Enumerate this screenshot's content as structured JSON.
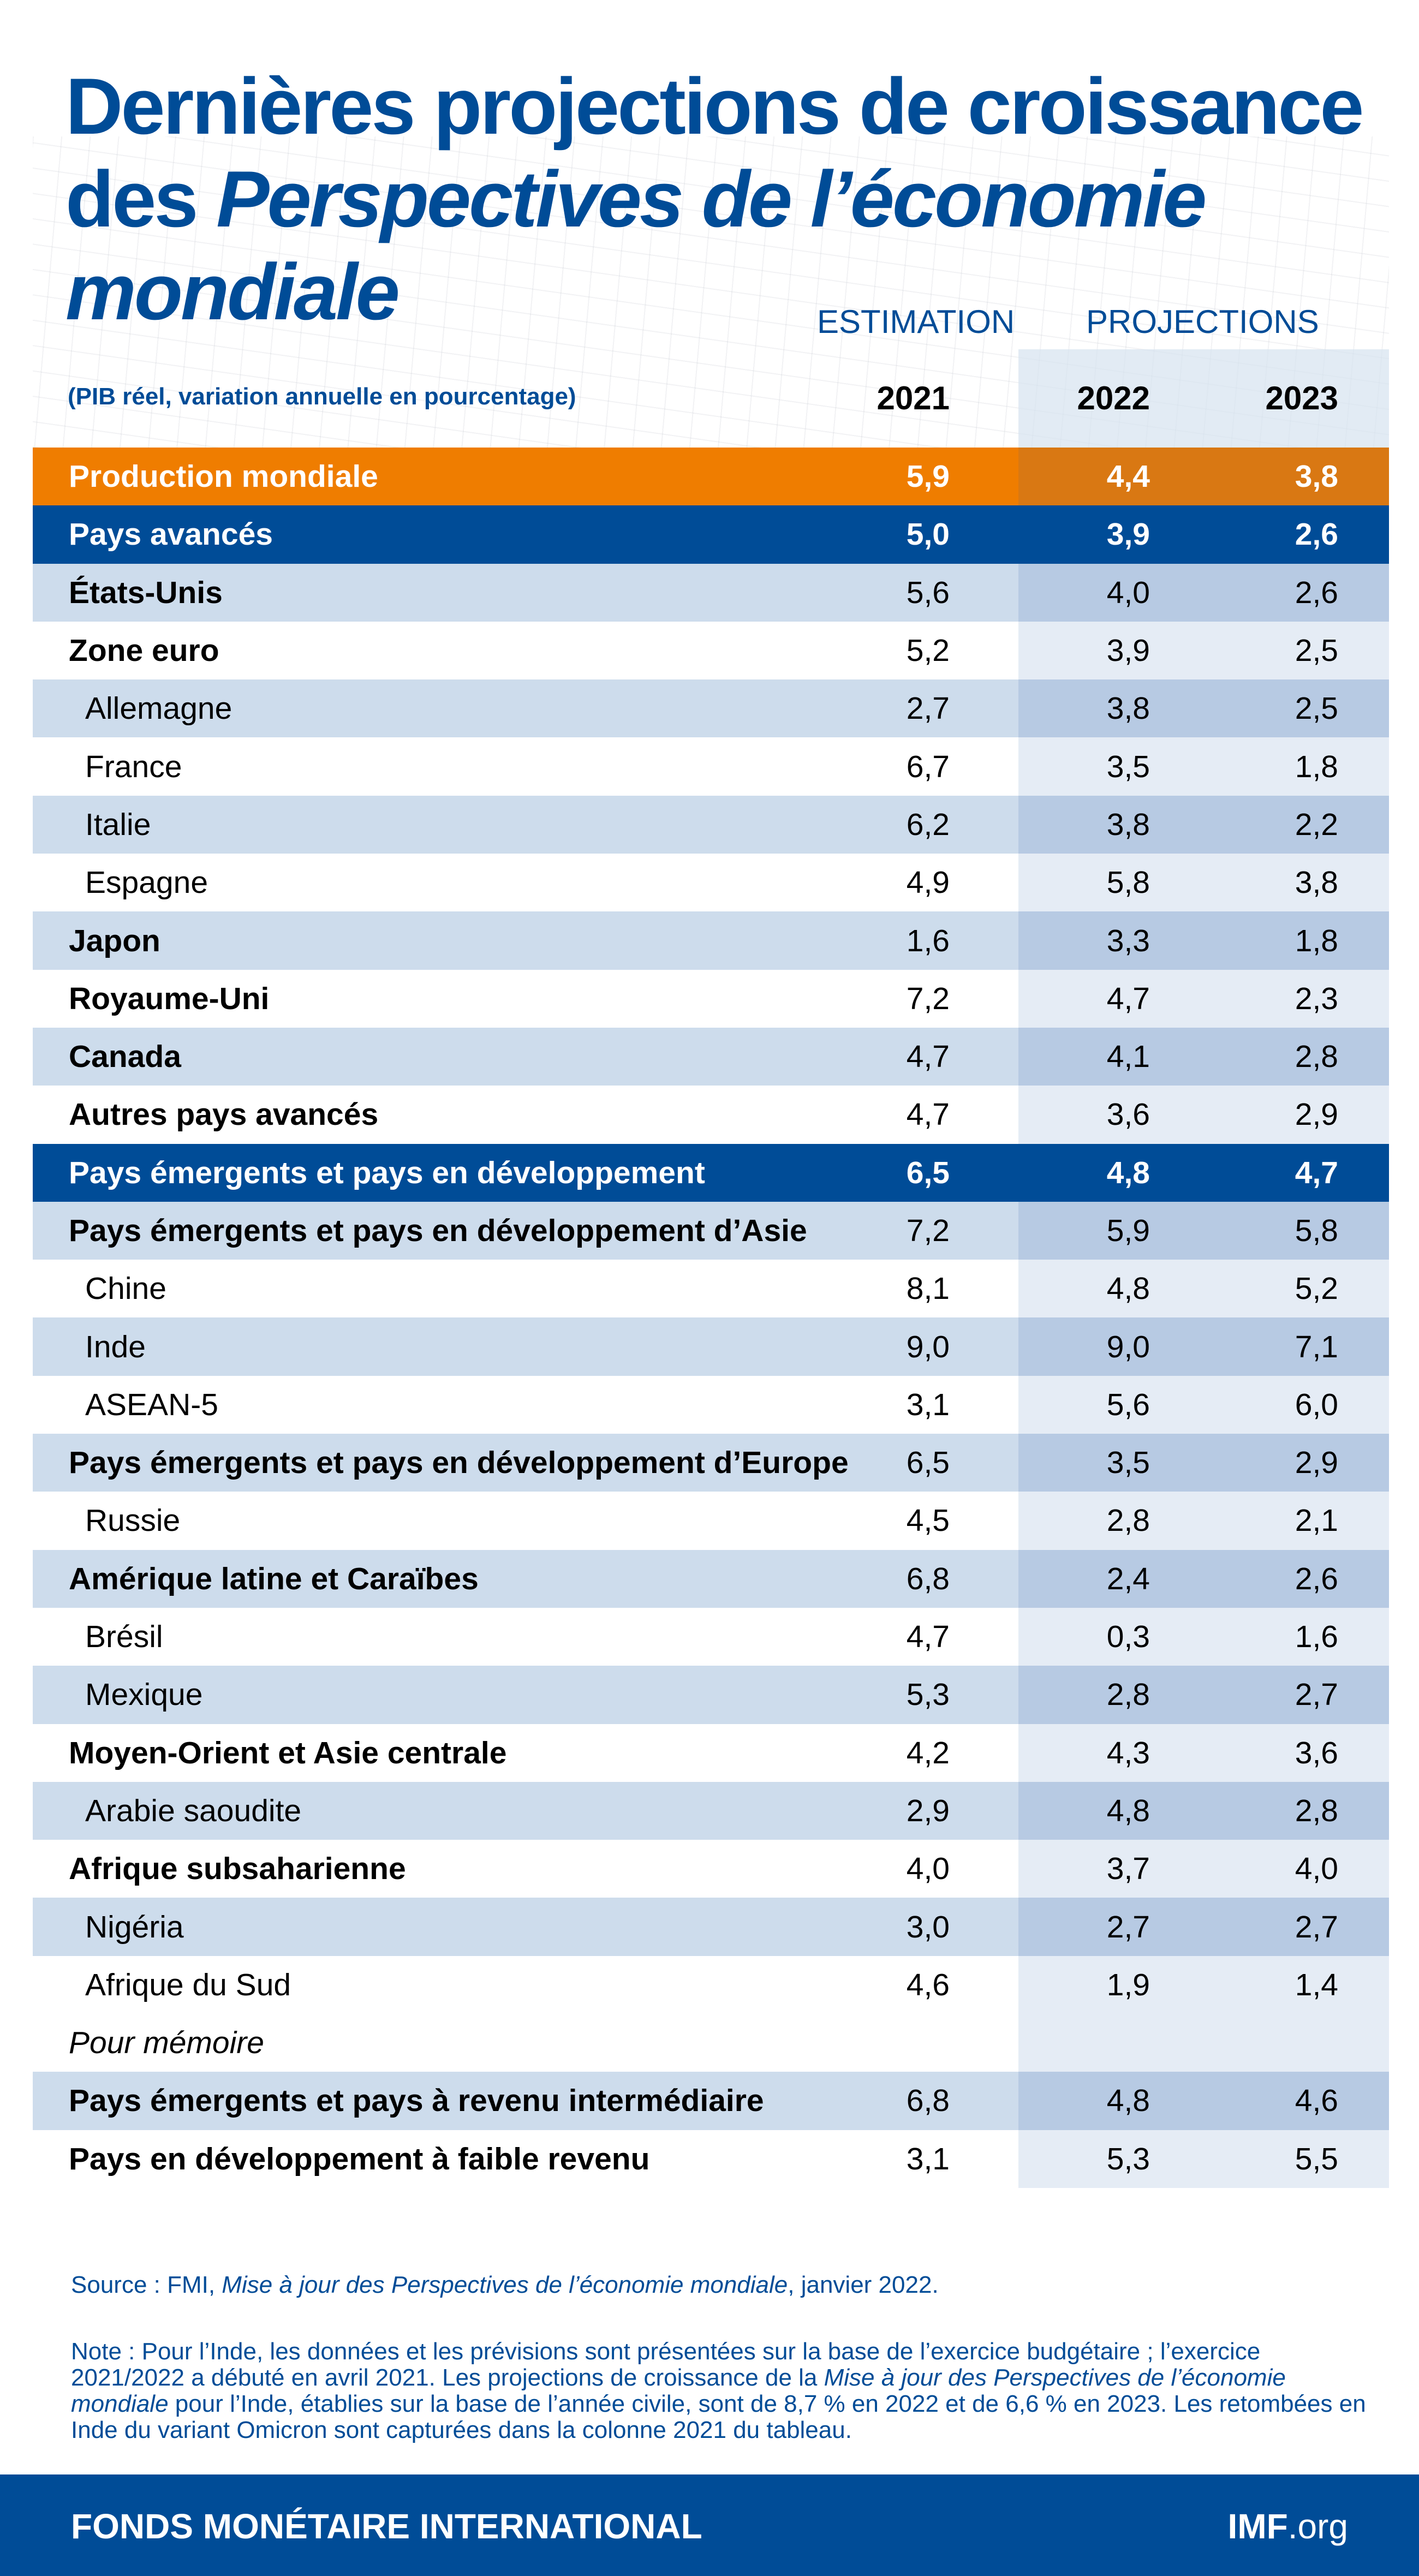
{
  "title": {
    "line1": "Dernières projections de croissance",
    "line2_plain": "des ",
    "line2_italic": "Perspectives de l’économie",
    "line3_italic": "mondiale"
  },
  "subtitle": "(PIB réel, variation annuelle en pourcentage)",
  "column_groups": {
    "estimation": "ESTIMATION",
    "projections": "PROJECTIONS"
  },
  "years": [
    "2021",
    "2022",
    "2023"
  ],
  "colors": {
    "brand_blue": "#004c97",
    "orange": "#ef7d00",
    "stripe": "#cddcec"
  },
  "rows": [
    {
      "label": "Production mondiale",
      "type": "world",
      "values": [
        "5,9",
        "4,4",
        "3,8"
      ]
    },
    {
      "label": "Pays avancés",
      "type": "group",
      "values": [
        "5,0",
        "3,9",
        "2,6"
      ]
    },
    {
      "label": "États-Unis",
      "type": "bold",
      "values": [
        "5,6",
        "4,0",
        "2,6"
      ]
    },
    {
      "label": "Zone euro",
      "type": "bold",
      "values": [
        "5,2",
        "3,9",
        "2,5"
      ]
    },
    {
      "label": "Allemagne",
      "type": "indent",
      "values": [
        "2,7",
        "3,8",
        "2,5"
      ]
    },
    {
      "label": "France",
      "type": "indent",
      "values": [
        "6,7",
        "3,5",
        "1,8"
      ]
    },
    {
      "label": "Italie",
      "type": "indent",
      "values": [
        "6,2",
        "3,8",
        "2,2"
      ]
    },
    {
      "label": "Espagne",
      "type": "indent",
      "values": [
        "4,9",
        "5,8",
        "3,8"
      ]
    },
    {
      "label": "Japon",
      "type": "bold",
      "values": [
        "1,6",
        "3,3",
        "1,8"
      ]
    },
    {
      "label": "Royaume-Uni",
      "type": "bold",
      "values": [
        "7,2",
        "4,7",
        "2,3"
      ]
    },
    {
      "label": "Canada",
      "type": "bold",
      "values": [
        "4,7",
        "4,1",
        "2,8"
      ]
    },
    {
      "label": "Autres pays avancés",
      "type": "bold",
      "values": [
        "4,7",
        "3,6",
        "2,9"
      ]
    },
    {
      "label": "Pays émergents et pays en développement",
      "type": "group",
      "values": [
        "6,5",
        "4,8",
        "4,7"
      ]
    },
    {
      "label": "Pays émergents et pays en développement d’Asie",
      "type": "bold",
      "values": [
        "7,2",
        "5,9",
        "5,8"
      ]
    },
    {
      "label": "Chine",
      "type": "indent",
      "values": [
        "8,1",
        "4,8",
        "5,2"
      ]
    },
    {
      "label": "Inde",
      "type": "indent",
      "values": [
        "9,0",
        "9,0",
        "7,1"
      ]
    },
    {
      "label": "ASEAN-5",
      "type": "indent",
      "values": [
        "3,1",
        "5,6",
        "6,0"
      ]
    },
    {
      "label": "Pays émergents et pays en développement d’Europe",
      "type": "bold",
      "values": [
        "6,5",
        "3,5",
        "2,9"
      ]
    },
    {
      "label": "Russie",
      "type": "indent",
      "values": [
        "4,5",
        "2,8",
        "2,1"
      ]
    },
    {
      "label": "Amérique latine et Caraïbes",
      "type": "bold",
      "values": [
        "6,8",
        "2,4",
        "2,6"
      ]
    },
    {
      "label": "Brésil",
      "type": "indent",
      "values": [
        "4,7",
        "0,3",
        "1,6"
      ]
    },
    {
      "label": "Mexique",
      "type": "indent",
      "values": [
        "5,3",
        "2,8",
        "2,7"
      ]
    },
    {
      "label": "Moyen-Orient et Asie centrale",
      "type": "bold",
      "values": [
        "4,2",
        "4,3",
        "3,6"
      ]
    },
    {
      "label": "Arabie saoudite",
      "type": "indent",
      "values": [
        "2,9",
        "4,8",
        "2,8"
      ]
    },
    {
      "label": "Afrique subsaharienne",
      "type": "bold",
      "values": [
        "4,0",
        "3,7",
        "4,0"
      ]
    },
    {
      "label": "Nigéria",
      "type": "indent",
      "values": [
        "3,0",
        "2,7",
        "2,7"
      ]
    },
    {
      "label": "Afrique du Sud",
      "type": "indent",
      "values": [
        "4,6",
        "1,9",
        "1,4"
      ]
    },
    {
      "label": "Pour mémoire",
      "type": "memo",
      "values": [
        "",
        "",
        ""
      ]
    },
    {
      "label": "Pays émergents et pays à revenu intermédiaire",
      "type": "bold",
      "values": [
        "6,8",
        "4,8",
        "4,6"
      ]
    },
    {
      "label": "Pays en développement à faible revenu",
      "type": "bold",
      "values": [
        "3,1",
        "5,3",
        "5,5"
      ]
    }
  ],
  "source": {
    "prefix": "Source : FMI, ",
    "italic": "Mise à jour des Perspectives de l’économie mondiale",
    "suffix": ", janvier 2022."
  },
  "note": {
    "part1": "Note : Pour l’Inde, les données et les prévisions sont présentées sur la base de l’exercice budgétaire ; l’exercice 2021/2022 a débuté en avril 2021. Les projections de croissance de la ",
    "italic": "Mise à jour des Perspectives de l’économie mondiale",
    "part2": " pour l’Inde, établies sur la base de l’année civile, sont de 8,7 % en 2022 et de 6,6 % en 2023. Les retombées en Inde du variant Omicron sont capturées dans la colonne 2021 du tableau."
  },
  "footer": {
    "org": "FONDS MONÉTAIRE INTERNATIONAL",
    "site_bold": "IMF",
    "site_rest": ".org"
  }
}
